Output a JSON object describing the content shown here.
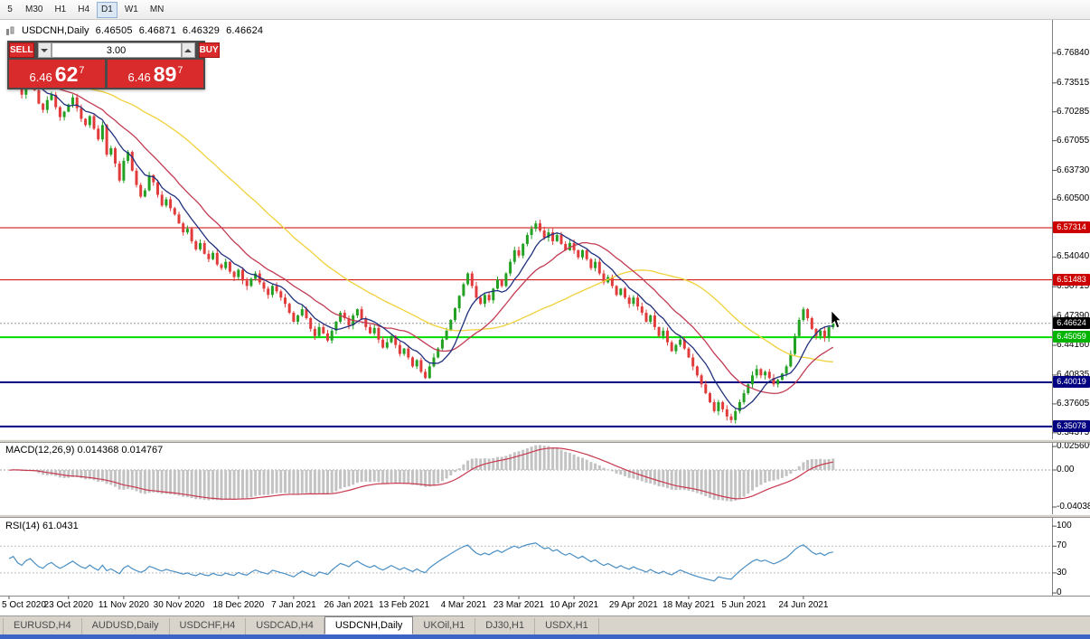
{
  "toolbar": {
    "timeframes": [
      {
        "label": "5",
        "active": false
      },
      {
        "label": "M30",
        "active": false
      },
      {
        "label": "H1",
        "active": false
      },
      {
        "label": "H4",
        "active": false
      },
      {
        "label": "D1",
        "active": true
      },
      {
        "label": "W1",
        "active": false
      },
      {
        "label": "MN",
        "active": false
      }
    ]
  },
  "chart_info": {
    "symbol": "USDCNH,Daily",
    "open": "6.46505",
    "high": "6.46871",
    "low": "6.46329",
    "close": "6.46624"
  },
  "trade_panel": {
    "sell_label": "SELL",
    "buy_label": "BUY",
    "volume": "3.00",
    "sell_price": {
      "base": "6.46",
      "big": "62",
      "sup": "7"
    },
    "buy_price": {
      "base": "6.46",
      "big": "89",
      "sup": "7"
    }
  },
  "indicators": {
    "macd_label": "MACD(12,26,9) 0.014368 0.014767",
    "rsi_label": "RSI(14) 61.0431"
  },
  "tabs": [
    {
      "label": "EURUSD,H4",
      "active": false
    },
    {
      "label": "AUDUSD,Daily",
      "active": false
    },
    {
      "label": "USDCHF,H4",
      "active": false
    },
    {
      "label": "USDCAD,H4",
      "active": false
    },
    {
      "label": "USDCNH,Daily",
      "active": true
    },
    {
      "label": "UKOil,H1",
      "active": false
    },
    {
      "label": "DJ30,H1",
      "active": false
    },
    {
      "label": "USDX,H1",
      "active": false
    }
  ],
  "chart_data": {
    "type": "candlestick",
    "symbol": "USDCNH",
    "timeframe": "Daily",
    "price_axis": {
      "min": 6.3365,
      "max": 6.8057,
      "labels": [
        "6.76840",
        "6.73515",
        "6.70285",
        "6.67055",
        "6.63730",
        "6.60500",
        "6.57270",
        "6.54040",
        "6.50715",
        "6.47390",
        "6.44160",
        "6.40835",
        "6.37605",
        "6.34375"
      ]
    },
    "macd_axis": {
      "min": -0.04828,
      "max": 0.02956,
      "labels": [
        "0.025609",
        "0.00",
        "-0.04038"
      ]
    },
    "rsi_axis": {
      "min": -4,
      "max": 111,
      "labels": [
        "100",
        "70",
        "30",
        "0"
      ]
    },
    "h_lines": [
      {
        "value": 6.57314,
        "color": "#cc0000",
        "width": 1
      },
      {
        "value": 6.51483,
        "color": "#cc0000",
        "width": 1
      },
      {
        "value": 6.45059,
        "color": "#00dd00",
        "width": 2
      },
      {
        "value": 6.40019,
        "color": "#000080",
        "width": 2
      },
      {
        "value": 6.35078,
        "color": "#000080",
        "width": 2
      }
    ],
    "badges": [
      {
        "value": 6.57314,
        "text": "6.57314",
        "color": "#cc0000"
      },
      {
        "value": 6.51483,
        "text": "6.51483",
        "color": "#cc0000"
      },
      {
        "value": 6.46624,
        "text": "6.46624",
        "color": "#000000"
      },
      {
        "value": 6.45059,
        "text": "6.45059",
        "color": "#00b400"
      },
      {
        "value": 6.40019,
        "text": "6.40019",
        "color": "#000080"
      },
      {
        "value": 6.35078,
        "text": "6.35078",
        "color": "#000080"
      }
    ],
    "current_price": 6.46624,
    "date_labels": [
      {
        "label": "5 Oct 2020",
        "index": 0
      },
      {
        "label": "23 Oct 2020",
        "index": 14
      },
      {
        "label": "11 Nov 2020",
        "index": 27
      },
      {
        "label": "30 Nov 2020",
        "index": 40
      },
      {
        "label": "18 Dec 2020",
        "index": 54
      },
      {
        "label": "7 Jan 2021",
        "index": 67
      },
      {
        "label": "26 Jan 2021",
        "index": 80
      },
      {
        "label": "13 Feb 2021",
        "index": 93
      },
      {
        "label": "4 Mar 2021",
        "index": 107
      },
      {
        "label": "23 Mar 2021",
        "index": 120
      },
      {
        "label": "10 Apr 2021",
        "index": 133
      },
      {
        "label": "29 Apr 2021",
        "index": 147
      },
      {
        "label": "18 May 2021",
        "index": 160
      },
      {
        "label": "5 Jun 2021",
        "index": 173
      },
      {
        "label": "24 Jun 2021",
        "index": 187
      }
    ],
    "pre_closes": [
      6.752,
      6.746,
      6.738,
      6.742,
      6.75,
      6.756,
      6.748,
      6.74,
      6.734,
      6.738,
      6.746,
      6.752,
      6.744,
      6.736,
      6.73,
      6.734,
      6.742,
      6.748,
      6.74,
      6.732,
      6.726,
      6.73,
      6.738,
      6.744,
      6.736,
      6.728,
      6.722,
      6.726,
      6.734,
      6.74,
      6.748,
      6.754,
      6.746,
      6.738,
      6.732,
      6.736,
      6.744,
      6.75,
      6.742,
      6.734,
      6.728,
      6.732,
      6.74,
      6.746,
      6.738,
      6.73,
      6.736,
      6.742,
      6.748,
      6.74
    ],
    "closes": [
      6.742,
      6.748,
      6.731,
      6.722,
      6.735,
      6.741,
      6.727,
      6.712,
      6.705,
      6.716,
      6.722,
      6.708,
      6.697,
      6.703,
      6.711,
      6.719,
      6.707,
      6.695,
      6.688,
      6.698,
      6.684,
      6.672,
      6.688,
      6.655,
      6.662,
      6.645,
      6.626,
      6.648,
      6.658,
      6.637,
      6.621,
      6.608,
      6.615,
      6.632,
      6.624,
      6.61,
      6.598,
      6.605,
      6.595,
      6.588,
      6.578,
      6.568,
      6.572,
      6.558,
      6.549,
      6.556,
      6.544,
      6.538,
      6.545,
      6.532,
      6.528,
      6.535,
      6.524,
      6.518,
      6.526,
      6.514,
      6.508,
      6.516,
      6.522,
      6.512,
      6.505,
      6.498,
      6.508,
      6.502,
      6.495,
      6.488,
      6.478,
      6.468,
      6.475,
      6.482,
      6.472,
      6.46,
      6.452,
      6.462,
      6.455,
      6.447,
      6.458,
      6.468,
      6.478,
      6.472,
      6.464,
      6.475,
      6.482,
      6.471,
      6.462,
      6.455,
      6.461,
      6.448,
      6.439,
      6.445,
      6.452,
      6.442,
      6.432,
      6.438,
      6.428,
      6.418,
      6.425,
      6.412,
      6.405,
      6.418,
      6.428,
      6.438,
      6.448,
      6.458,
      6.47,
      6.483,
      6.497,
      6.51,
      6.522,
      6.508,
      6.495,
      6.488,
      6.498,
      6.492,
      6.505,
      6.515,
      6.508,
      6.522,
      6.535,
      6.548,
      6.542,
      6.555,
      6.565,
      6.572,
      6.578,
      6.57,
      6.562,
      6.568,
      6.558,
      6.565,
      6.555,
      6.548,
      6.556,
      6.548,
      6.54,
      6.548,
      6.538,
      6.528,
      6.535,
      6.522,
      6.512,
      6.518,
      6.508,
      6.498,
      6.505,
      6.495,
      6.488,
      6.495,
      6.485,
      6.478,
      6.468,
      6.475,
      6.462,
      6.452,
      6.458,
      6.445,
      6.435,
      6.442,
      6.448,
      6.438,
      6.428,
      6.418,
      6.408,
      6.398,
      6.388,
      6.378,
      6.368,
      6.378,
      6.37,
      6.362,
      6.358,
      6.368,
      6.378,
      6.388,
      6.398,
      6.408,
      6.415,
      6.408,
      6.412,
      6.405,
      6.398,
      6.403,
      6.41,
      6.418,
      6.432,
      6.452,
      6.47,
      6.482,
      6.472,
      6.46,
      6.452,
      6.458,
      6.45,
      6.462,
      6.466
    ],
    "ma": [
      {
        "period": 45,
        "color": "#f0d13a"
      },
      {
        "period": 18,
        "color": "#c23b53"
      },
      {
        "period": 8,
        "color": "#20317e"
      }
    ],
    "macd": {
      "fast": 12,
      "slow": 26,
      "signal": 9,
      "hist_color": "#c3c3c3",
      "signal_color": "#c8384e"
    },
    "rsi": {
      "period": 14,
      "color": "#4a8fc4",
      "levels": [
        70,
        30
      ]
    },
    "colors": {
      "up": "#23a123",
      "down": "#e23b3b",
      "bg": "#ffffff"
    }
  }
}
